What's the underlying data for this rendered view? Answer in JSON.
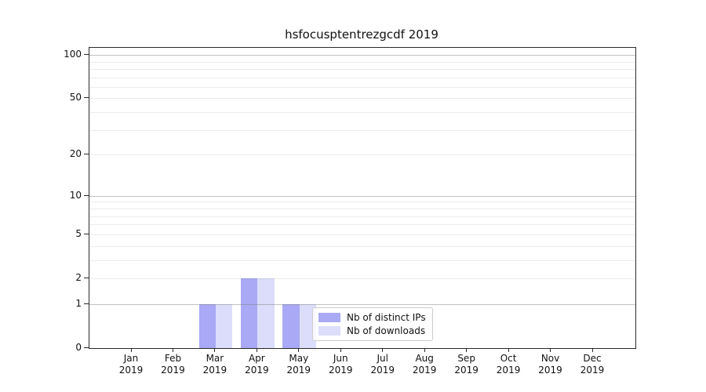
{
  "chart_data": {
    "type": "bar",
    "title": "hsfocusptentrezgcdf 2019",
    "categories": [
      "Jan",
      "Feb",
      "Mar",
      "Apr",
      "May",
      "Jun",
      "Jul",
      "Aug",
      "Sep",
      "Oct",
      "Nov",
      "Dec"
    ],
    "x_year": "2019",
    "series": [
      {
        "name": "Nb of distinct IPs",
        "color": "#a9a9f5",
        "values": [
          0,
          0,
          1,
          2,
          1,
          0,
          0,
          0,
          0,
          0,
          0,
          0
        ]
      },
      {
        "name": "Nb of downloads",
        "color": "#dcddfa",
        "values": [
          0,
          0,
          1,
          2,
          1,
          0,
          0,
          0,
          0,
          0,
          0,
          0
        ]
      }
    ],
    "yscale": "log1p",
    "ylim": [
      0,
      112
    ],
    "ytick_values": [
      0,
      1,
      2,
      5,
      10,
      20,
      50,
      100
    ],
    "major_gridlines": [
      1,
      10,
      100
    ],
    "minor_gridlines": [
      2,
      3,
      4,
      5,
      6,
      7,
      8,
      9,
      20,
      30,
      40,
      50,
      60,
      70,
      80,
      90
    ],
    "grid": true,
    "legend": {
      "position": "lower-center",
      "entries": [
        "Nb of distinct IPs",
        "Nb of downloads"
      ]
    }
  }
}
